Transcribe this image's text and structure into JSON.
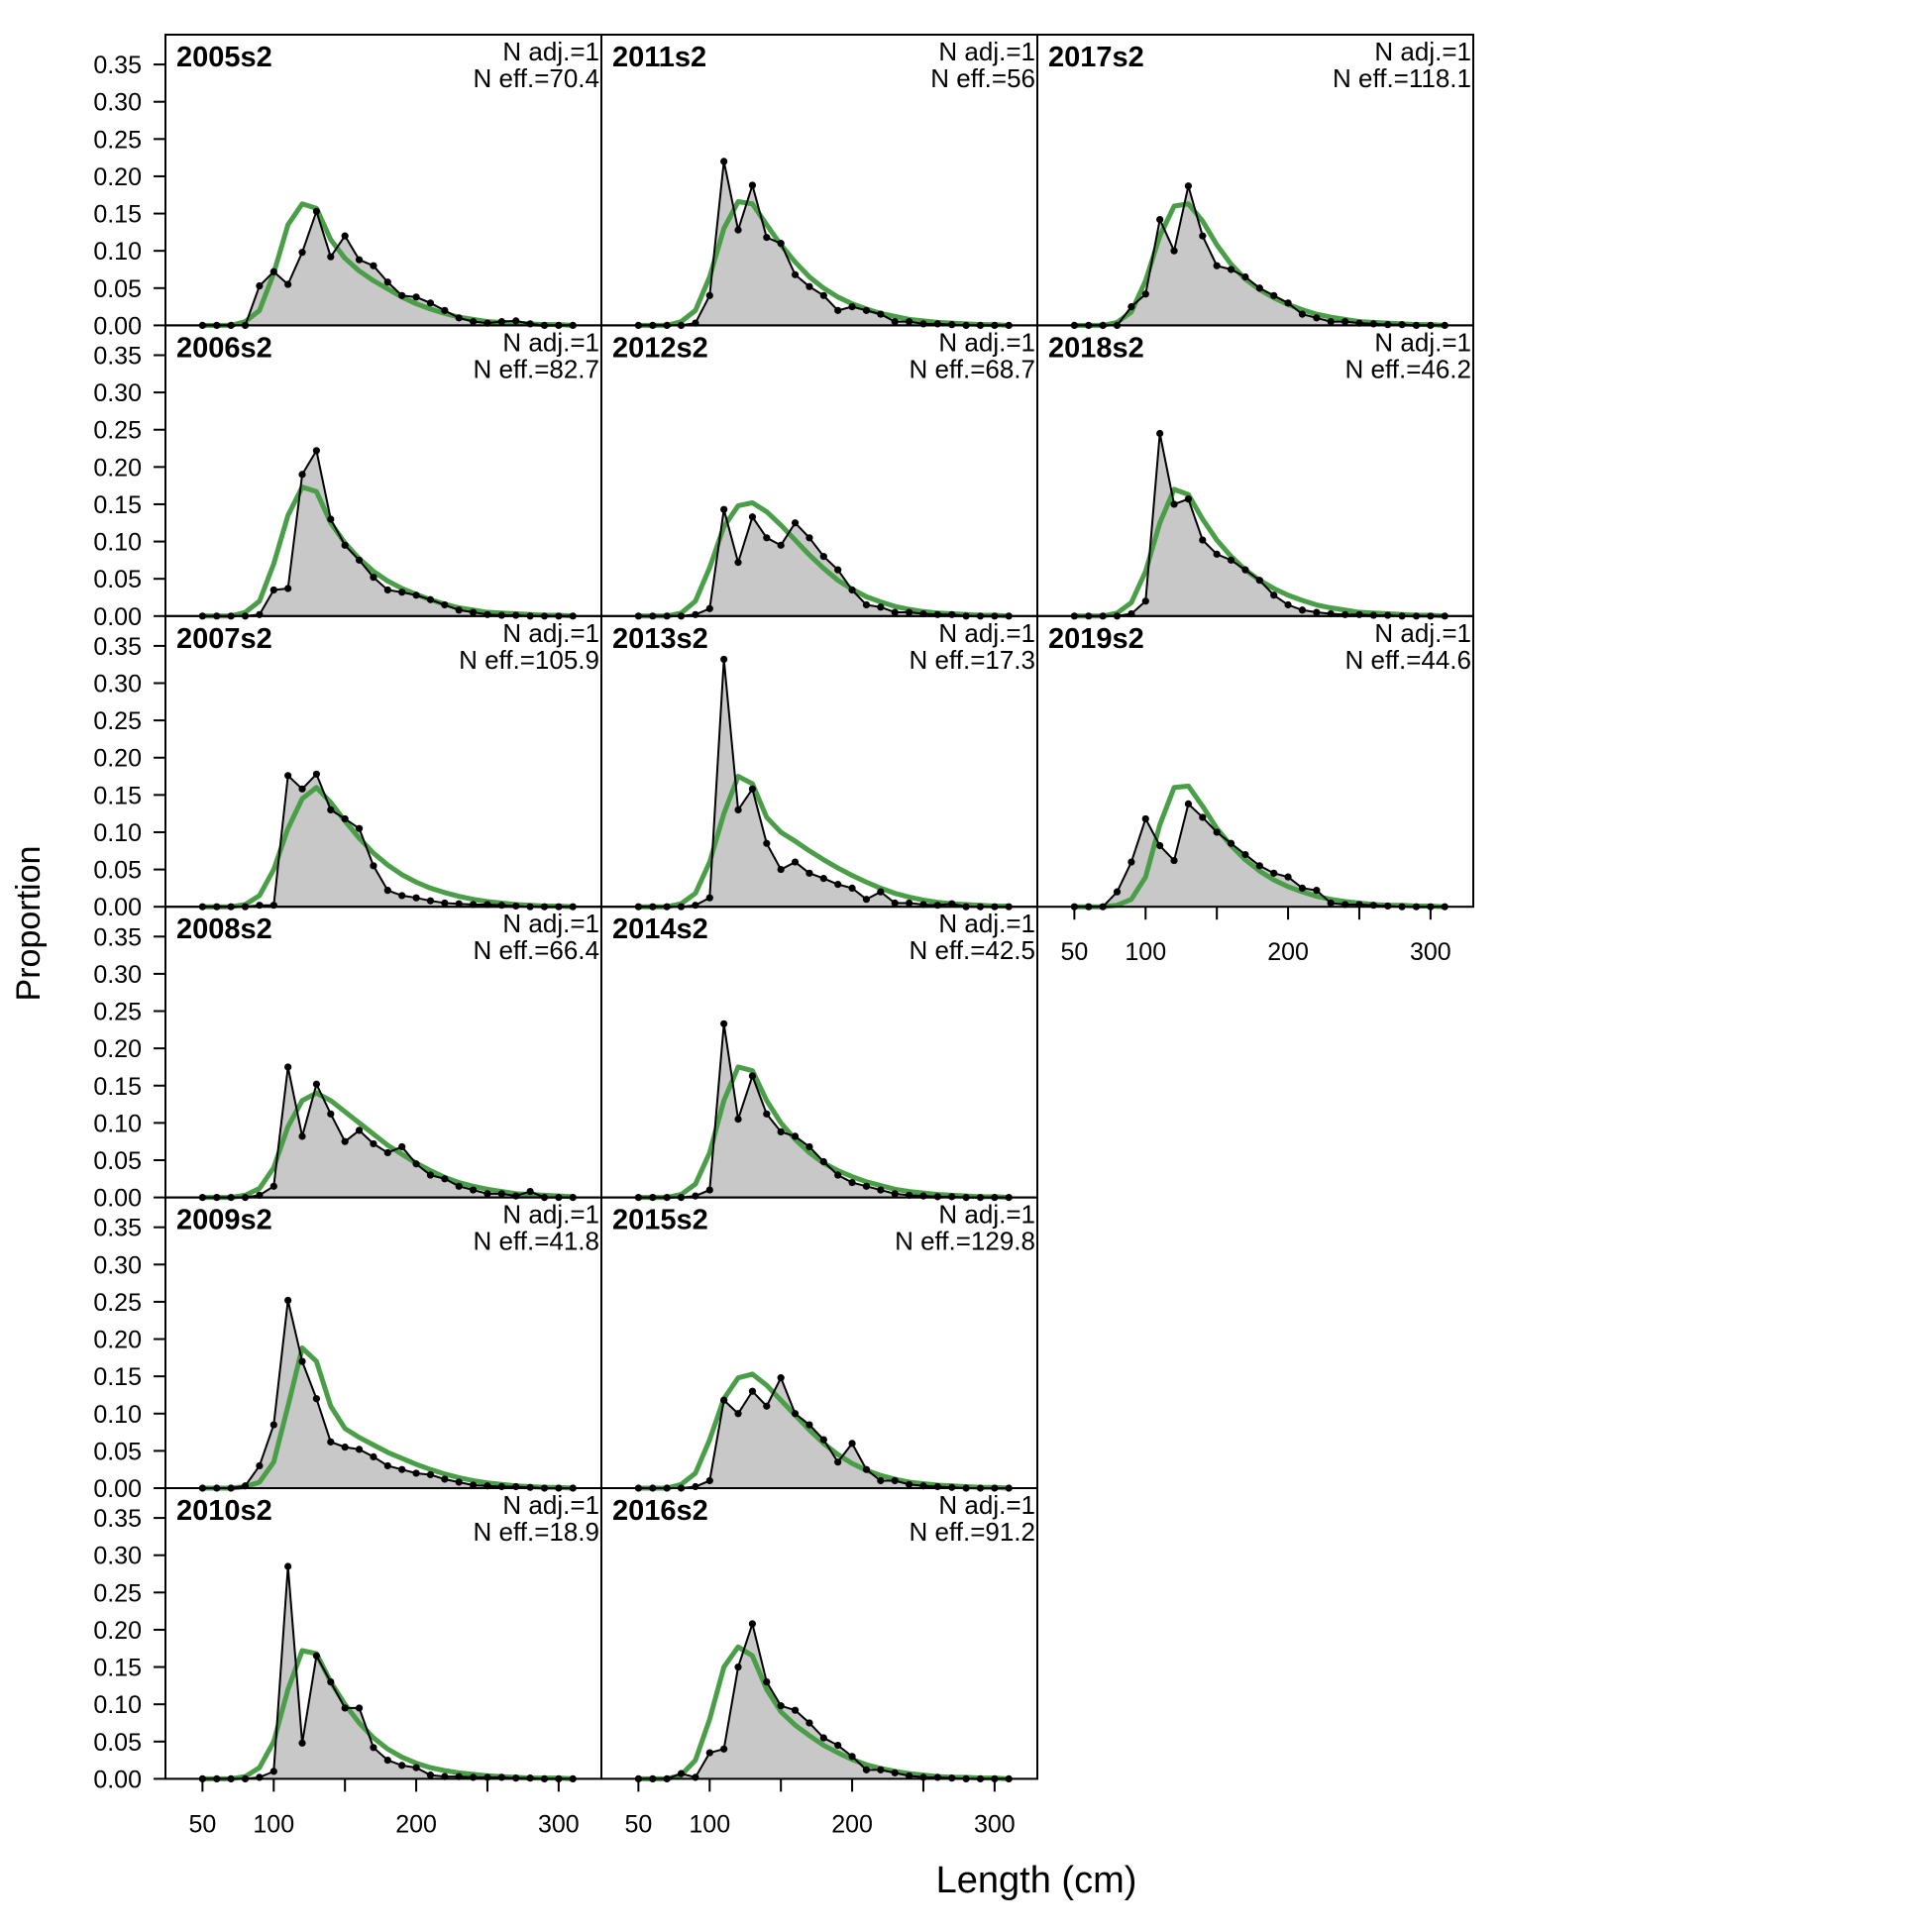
{
  "chart_data": {
    "type": "area",
    "ylabel": "Proportion",
    "xlabel": "Length (cm)",
    "x_ticks": [
      50,
      100,
      200,
      300
    ],
    "y_ticks": [
      "0.00",
      "0.05",
      "0.10",
      "0.15",
      "0.20",
      "0.25",
      "0.30",
      "0.35"
    ],
    "xlim": [
      24,
      330
    ],
    "ylim": [
      0,
      0.39
    ],
    "colors": {
      "observed_fill": "#c8c8c8",
      "observed_line": "#000000",
      "expected_line": "#4a9e47",
      "zero_line": "#bdbdbd"
    },
    "x": [
      50,
      60,
      70,
      80,
      90,
      100,
      110,
      120,
      130,
      140,
      150,
      160,
      170,
      180,
      190,
      200,
      210,
      220,
      230,
      240,
      250,
      260,
      270,
      280,
      290,
      300,
      310
    ],
    "panels": [
      {
        "label": "2005s2",
        "n_adj": "N adj.=1",
        "n_eff": "N eff.=70.4",
        "observed": [
          0,
          0,
          0,
          0,
          0.053,
          0.072,
          0.055,
          0.098,
          0.153,
          0.092,
          0.12,
          0.088,
          0.08,
          0.058,
          0.04,
          0.038,
          0.03,
          0.02,
          0.01,
          0.005,
          0.003,
          0.005,
          0.006,
          0.002,
          0,
          0,
          0
        ],
        "expected": [
          0,
          0,
          0,
          0.005,
          0.02,
          0.07,
          0.135,
          0.163,
          0.157,
          0.115,
          0.09,
          0.073,
          0.06,
          0.049,
          0.038,
          0.029,
          0.022,
          0.016,
          0.011,
          0.008,
          0.005,
          0.004,
          0.003,
          0.002,
          0.001,
          0.001,
          0
        ]
      },
      {
        "label": "2006s2",
        "n_adj": "N adj.=1",
        "n_eff": "N eff.=82.7",
        "observed": [
          0,
          0,
          0,
          0,
          0.002,
          0.035,
          0.037,
          0.19,
          0.222,
          0.13,
          0.095,
          0.075,
          0.052,
          0.035,
          0.032,
          0.028,
          0.022,
          0.015,
          0.008,
          0.005,
          0.002,
          0.001,
          0.001,
          0,
          0,
          0,
          0
        ],
        "expected": [
          0,
          0,
          0,
          0.005,
          0.02,
          0.07,
          0.135,
          0.173,
          0.167,
          0.125,
          0.098,
          0.077,
          0.06,
          0.047,
          0.037,
          0.029,
          0.022,
          0.016,
          0.011,
          0.008,
          0.005,
          0.004,
          0.003,
          0.002,
          0.001,
          0.001,
          0
        ]
      },
      {
        "label": "2007s2",
        "n_adj": "N adj.=1",
        "n_eff": "N eff.=105.9",
        "observed": [
          0,
          0,
          0,
          0,
          0.002,
          0.002,
          0.176,
          0.158,
          0.178,
          0.13,
          0.118,
          0.105,
          0.055,
          0.022,
          0.015,
          0.012,
          0.008,
          0.005,
          0.004,
          0.003,
          0.003,
          0.002,
          0.001,
          0,
          0,
          0,
          0
        ],
        "expected": [
          0,
          0,
          0,
          0.003,
          0.015,
          0.05,
          0.105,
          0.145,
          0.16,
          0.14,
          0.115,
          0.092,
          0.072,
          0.056,
          0.043,
          0.033,
          0.025,
          0.019,
          0.014,
          0.01,
          0.007,
          0.005,
          0.003,
          0.002,
          0.001,
          0.001,
          0
        ]
      },
      {
        "label": "2008s2",
        "n_adj": "N adj.=1",
        "n_eff": "N eff.=66.4",
        "observed": [
          0,
          0,
          0,
          0,
          0.003,
          0.015,
          0.175,
          0.082,
          0.152,
          0.112,
          0.075,
          0.09,
          0.072,
          0.06,
          0.068,
          0.045,
          0.03,
          0.025,
          0.015,
          0.01,
          0.005,
          0.005,
          0.002,
          0.008,
          0,
          0,
          0
        ],
        "expected": [
          0,
          0,
          0,
          0.003,
          0.012,
          0.04,
          0.095,
          0.13,
          0.14,
          0.13,
          0.115,
          0.1,
          0.085,
          0.07,
          0.058,
          0.046,
          0.036,
          0.027,
          0.02,
          0.015,
          0.011,
          0.008,
          0.005,
          0.004,
          0.003,
          0.002,
          0.001
        ]
      },
      {
        "label": "2009s2",
        "n_adj": "N adj.=1",
        "n_eff": "N eff.=41.8",
        "observed": [
          0,
          0,
          0,
          0.003,
          0.03,
          0.085,
          0.252,
          0.17,
          0.12,
          0.062,
          0.055,
          0.052,
          0.042,
          0.03,
          0.025,
          0.02,
          0.018,
          0.012,
          0.008,
          0.004,
          0.003,
          0.002,
          0.002,
          0.001,
          0,
          0,
          0
        ],
        "expected": [
          0,
          0,
          0,
          0.002,
          0.008,
          0.035,
          0.11,
          0.188,
          0.17,
          0.11,
          0.08,
          0.068,
          0.058,
          0.048,
          0.04,
          0.032,
          0.025,
          0.019,
          0.014,
          0.01,
          0.007,
          0.005,
          0.003,
          0.002,
          0.001,
          0.001,
          0
        ]
      },
      {
        "label": "2010s2",
        "n_adj": "N adj.=1",
        "n_eff": "N eff.=18.9",
        "observed": [
          0,
          0,
          0,
          0,
          0.002,
          0.01,
          0.285,
          0.048,
          0.165,
          0.13,
          0.095,
          0.095,
          0.042,
          0.025,
          0.018,
          0.015,
          0.005,
          0.003,
          0.003,
          0.002,
          0.002,
          0.002,
          0.001,
          0.001,
          0,
          0,
          0
        ],
        "expected": [
          0,
          0,
          0,
          0.003,
          0.015,
          0.05,
          0.12,
          0.172,
          0.168,
          0.13,
          0.1,
          0.075,
          0.055,
          0.04,
          0.029,
          0.021,
          0.015,
          0.011,
          0.008,
          0.006,
          0.004,
          0.003,
          0.002,
          0.001,
          0.001,
          0.001,
          0
        ]
      },
      {
        "label": "2011s2",
        "n_adj": "N adj.=1",
        "n_eff": "N eff.=56",
        "observed": [
          0,
          0,
          0,
          0,
          0.003,
          0.04,
          0.22,
          0.128,
          0.188,
          0.118,
          0.11,
          0.068,
          0.052,
          0.04,
          0.02,
          0.025,
          0.02,
          0.015,
          0.005,
          0.005,
          0.002,
          0.002,
          0.001,
          0,
          0,
          0,
          0
        ],
        "expected": [
          0,
          0,
          0,
          0.005,
          0.02,
          0.065,
          0.13,
          0.166,
          0.163,
          0.135,
          0.108,
          0.085,
          0.065,
          0.05,
          0.038,
          0.029,
          0.022,
          0.016,
          0.012,
          0.008,
          0.006,
          0.004,
          0.003,
          0.002,
          0.001,
          0.001,
          0
        ]
      },
      {
        "label": "2012s2",
        "n_adj": "N adj.=1",
        "n_eff": "N eff.=68.7",
        "observed": [
          0,
          0,
          0,
          0,
          0.002,
          0.01,
          0.143,
          0.072,
          0.133,
          0.105,
          0.095,
          0.125,
          0.105,
          0.08,
          0.062,
          0.035,
          0.015,
          0.012,
          0.005,
          0.005,
          0.003,
          0.002,
          0.002,
          0,
          0,
          0,
          0
        ],
        "expected": [
          0,
          0,
          0,
          0.004,
          0.02,
          0.065,
          0.12,
          0.148,
          0.152,
          0.14,
          0.122,
          0.102,
          0.082,
          0.064,
          0.048,
          0.036,
          0.026,
          0.019,
          0.013,
          0.009,
          0.006,
          0.004,
          0.003,
          0.002,
          0.001,
          0.001,
          0
        ]
      },
      {
        "label": "2013s2",
        "n_adj": "N adj.=1",
        "n_eff": "N eff.=17.3",
        "observed": [
          0,
          0,
          0,
          0,
          0.002,
          0.012,
          0.332,
          0.13,
          0.158,
          0.085,
          0.05,
          0.06,
          0.045,
          0.038,
          0.03,
          0.025,
          0.01,
          0.02,
          0.005,
          0.005,
          0.003,
          0.002,
          0.004,
          0,
          0,
          0,
          0
        ],
        "expected": [
          0,
          0,
          0,
          0.004,
          0.018,
          0.06,
          0.125,
          0.175,
          0.165,
          0.12,
          0.1,
          0.088,
          0.075,
          0.063,
          0.052,
          0.042,
          0.033,
          0.025,
          0.018,
          0.013,
          0.009,
          0.006,
          0.004,
          0.003,
          0.002,
          0.001,
          0.001
        ]
      },
      {
        "label": "2014s2",
        "n_adj": "N adj.=1",
        "n_eff": "N eff.=42.5",
        "observed": [
          0,
          0,
          0,
          0,
          0.002,
          0.01,
          0.233,
          0.105,
          0.163,
          0.112,
          0.088,
          0.082,
          0.068,
          0.048,
          0.03,
          0.02,
          0.015,
          0.01,
          0.005,
          0.003,
          0.002,
          0.001,
          0.001,
          0,
          0,
          0,
          0
        ],
        "expected": [
          0,
          0,
          0,
          0.004,
          0.018,
          0.06,
          0.13,
          0.175,
          0.17,
          0.13,
          0.1,
          0.078,
          0.06,
          0.046,
          0.036,
          0.028,
          0.021,
          0.016,
          0.011,
          0.008,
          0.006,
          0.004,
          0.003,
          0.002,
          0.001,
          0.001,
          0
        ]
      },
      {
        "label": "2015s2",
        "n_adj": "N adj.=1",
        "n_eff": "N eff.=129.8",
        "observed": [
          0,
          0,
          0,
          0,
          0.002,
          0.01,
          0.118,
          0.1,
          0.13,
          0.11,
          0.148,
          0.1,
          0.085,
          0.065,
          0.035,
          0.06,
          0.025,
          0.01,
          0.01,
          0.005,
          0.003,
          0.002,
          0.001,
          0,
          0,
          0,
          0
        ],
        "expected": [
          0,
          0,
          0,
          0.005,
          0.02,
          0.065,
          0.12,
          0.148,
          0.153,
          0.138,
          0.118,
          0.098,
          0.078,
          0.06,
          0.045,
          0.033,
          0.024,
          0.017,
          0.012,
          0.008,
          0.006,
          0.004,
          0.003,
          0.002,
          0.001,
          0.001,
          0
        ]
      },
      {
        "label": "2016s2",
        "n_adj": "N adj.=1",
        "n_eff": "N eff.=91.2",
        "observed": [
          0,
          0,
          0,
          0.007,
          0.002,
          0.035,
          0.04,
          0.15,
          0.208,
          0.13,
          0.098,
          0.092,
          0.075,
          0.055,
          0.045,
          0.03,
          0.012,
          0.012,
          0.008,
          0.004,
          0.002,
          0.002,
          0.001,
          0,
          0,
          0,
          0
        ],
        "expected": [
          0,
          0,
          0,
          0.005,
          0.025,
          0.08,
          0.15,
          0.177,
          0.165,
          0.12,
          0.09,
          0.072,
          0.058,
          0.045,
          0.035,
          0.026,
          0.019,
          0.014,
          0.01,
          0.007,
          0.005,
          0.003,
          0.002,
          0.002,
          0.001,
          0.001,
          0
        ]
      },
      {
        "label": "2017s2",
        "n_adj": "N adj.=1",
        "n_eff": "N eff.=118.1",
        "observed": [
          0,
          0,
          0,
          0,
          0.025,
          0.042,
          0.142,
          0.1,
          0.187,
          0.12,
          0.08,
          0.075,
          0.065,
          0.05,
          0.04,
          0.03,
          0.015,
          0.01,
          0.005,
          0.005,
          0.003,
          0.002,
          0.001,
          0.001,
          0,
          0,
          0
        ],
        "expected": [
          0,
          0,
          0,
          0.004,
          0.018,
          0.06,
          0.12,
          0.16,
          0.163,
          0.14,
          0.108,
          0.082,
          0.062,
          0.048,
          0.037,
          0.028,
          0.021,
          0.015,
          0.011,
          0.008,
          0.005,
          0.004,
          0.003,
          0.002,
          0.001,
          0.001,
          0
        ]
      },
      {
        "label": "2018s2",
        "n_adj": "N adj.=1",
        "n_eff": "N eff.=46.2",
        "observed": [
          0,
          0,
          0,
          0,
          0.003,
          0.02,
          0.245,
          0.15,
          0.157,
          0.102,
          0.083,
          0.075,
          0.062,
          0.048,
          0.028,
          0.015,
          0.008,
          0.005,
          0.003,
          0.002,
          0.002,
          0.001,
          0.001,
          0,
          0,
          0,
          0
        ],
        "expected": [
          0,
          0,
          0,
          0.004,
          0.018,
          0.06,
          0.125,
          0.17,
          0.163,
          0.13,
          0.102,
          0.08,
          0.062,
          0.048,
          0.037,
          0.028,
          0.021,
          0.015,
          0.011,
          0.008,
          0.005,
          0.004,
          0.003,
          0.002,
          0.001,
          0.001,
          0
        ]
      },
      {
        "label": "2019s2",
        "n_adj": "N adj.=1",
        "n_eff": "N eff.=44.6",
        "observed": [
          0,
          0,
          0,
          0.02,
          0.06,
          0.118,
          0.082,
          0.062,
          0.138,
          0.12,
          0.1,
          0.085,
          0.07,
          0.055,
          0.045,
          0.04,
          0.025,
          0.022,
          0.005,
          0.003,
          0.003,
          0.002,
          0.001,
          0,
          0,
          0,
          0
        ],
        "expected": [
          0,
          0,
          0,
          0.002,
          0.01,
          0.04,
          0.11,
          0.16,
          0.162,
          0.135,
          0.105,
          0.082,
          0.063,
          0.048,
          0.036,
          0.027,
          0.02,
          0.014,
          0.01,
          0.007,
          0.005,
          0.003,
          0.002,
          0.002,
          0.001,
          0.001,
          0
        ]
      }
    ]
  }
}
